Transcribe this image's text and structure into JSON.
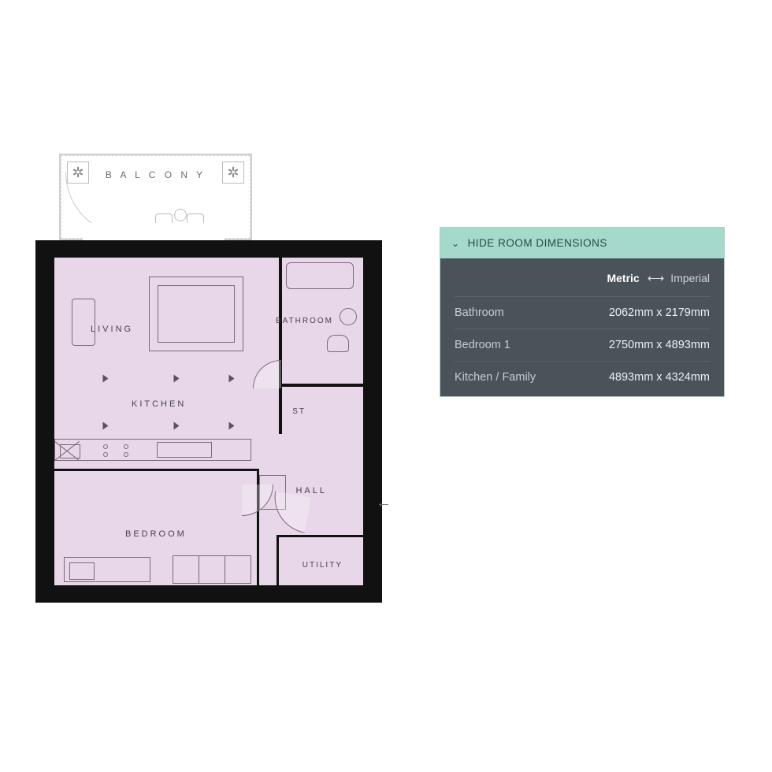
{
  "floorplan": {
    "colors": {
      "page_bg": "#ffffff",
      "wall": "#111111",
      "room_fill": "#e8d6e9",
      "balcony_border": "#cfcfcf",
      "label_color": "#444444",
      "furniture_stroke": "#7a6a7a"
    },
    "balcony_label": "B A L C O N Y",
    "rooms": {
      "living": "LIVING",
      "kitchen": "KITCHEN",
      "bathroom": "BATHROOM",
      "st": "ST",
      "hall": "HALL",
      "bedroom": "BEDROOM",
      "utility": "UTILITY"
    },
    "entry_arrow": "←"
  },
  "panel": {
    "colors": {
      "header_bg": "#a4d9cb",
      "header_text": "#2a4a44",
      "body_bg": "#4a535a",
      "body_text": "#d9dde0",
      "row_divider": "#5c646b",
      "border": "#a9cfc4"
    },
    "header_label": "HIDE ROOM DIMENSIONS",
    "units": {
      "metric_label": "Metric",
      "swap_glyph": "⟷",
      "imperial_label": "Imperial",
      "active": "metric"
    },
    "rows": [
      {
        "name": "Bathroom",
        "value": "2062mm x 2179mm"
      },
      {
        "name": "Bedroom 1",
        "value": "2750mm x 4893mm"
      },
      {
        "name": "Kitchen / Family",
        "value": "4893mm x 4324mm"
      }
    ]
  }
}
